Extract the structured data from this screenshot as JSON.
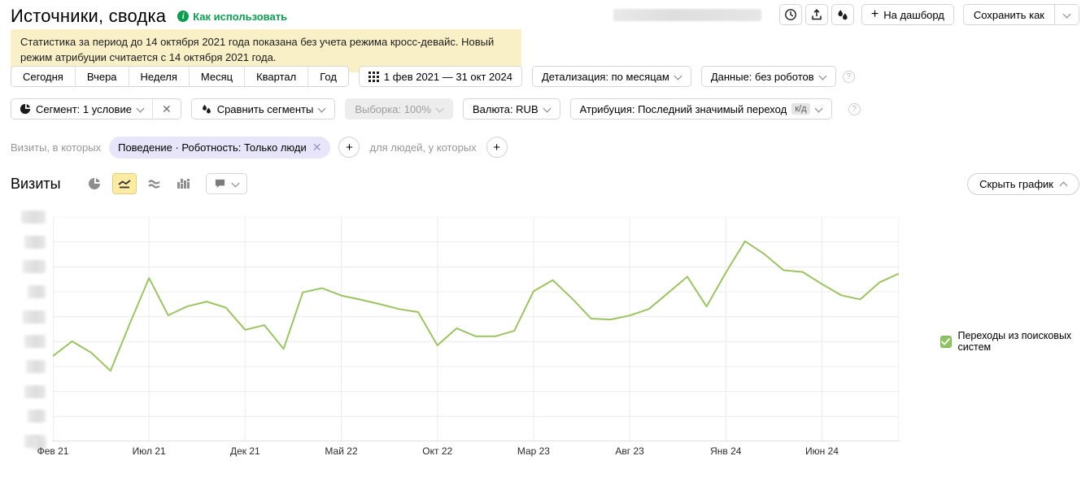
{
  "header": {
    "title": "Источники, сводка",
    "help_link": "Как использовать",
    "dashboard_label": "На дашборд",
    "save_as_label": "Сохранить как",
    "icons": [
      "history-clock-icon",
      "export-icon",
      "compare-segments-icon"
    ]
  },
  "notice": {
    "text": "Статистика за период до 14 октября 2021 года показана без учета режима кросс-девайс. Новый режим атрибуции считается с 14 октября 2021 года.",
    "background": "#faf0c8"
  },
  "toolbar": {
    "period_tabs": [
      "Сегодня",
      "Вчера",
      "Неделя",
      "Месяц",
      "Квартал",
      "Год"
    ],
    "date_range": "1 фев 2021 — 31 окт 2024",
    "detail_label": "Детализация: по месяцам",
    "data_label": "Данные: без роботов"
  },
  "segments": {
    "segment_label": "Сегмент: 1 условие",
    "compare_label": "Сравнить сегменты",
    "sampling_label": "Выборка: 100%",
    "currency_label": "Валюта: RUB",
    "attribution_label": "Атрибуция: Последний значимый переход",
    "attribution_badge": "к/д"
  },
  "filters": {
    "prefix": "Визиты, в которых",
    "chip_label": "Поведение · Роботность: Только люди",
    "suffix": "для людей, у которых"
  },
  "chart_header": {
    "title": "Визиты",
    "hide_label": "Скрыть график",
    "selected_chart_type": "line"
  },
  "legend": {
    "label": "Переходы из поисковых систем",
    "checkbox_color": "#8fc464",
    "checked": true
  },
  "chart_data": {
    "type": "line",
    "title": "Визиты",
    "x": [
      "Фев 21",
      "Мар 21",
      "Апр 21",
      "Май 21",
      "Июн 21",
      "Июл 21",
      "Авг 21",
      "Сен 21",
      "Окт 21",
      "Ноя 21",
      "Дек 21",
      "Янв 22",
      "Фев 22",
      "Мар 22",
      "Апр 22",
      "Май 22",
      "Июн 22",
      "Июл 22",
      "Авг 22",
      "Сен 22",
      "Окт 22",
      "Ноя 22",
      "Дек 22",
      "Янв 23",
      "Фев 23",
      "Мар 23",
      "Апр 23",
      "Май 23",
      "Июн 23",
      "Июл 23",
      "Авг 23",
      "Сен 23",
      "Окт 23",
      "Ноя 23",
      "Дек 23",
      "Янв 24",
      "Фев 24",
      "Мар 24",
      "Апр 24",
      "Май 24",
      "Июн 24",
      "Июл 24",
      "Авг 24",
      "Сен 24",
      "Окт 24"
    ],
    "x_tick_every": 5,
    "x_tick_labels": [
      "Фев 21",
      "Июл 21",
      "Дек 21",
      "Май 22",
      "Окт 22",
      "Мар 23",
      "Авг 23",
      "Янв 24",
      "Июн 24"
    ],
    "series": [
      {
        "name": "Переходы из поисковых систем",
        "color": "#9cc462",
        "values": [
          38,
          44.6,
          39.5,
          31.4,
          52.4,
          72.8,
          56.2,
          60.2,
          62.3,
          59.6,
          49.7,
          51.8,
          41.2,
          66.4,
          68.3,
          65,
          63.2,
          61.2,
          59,
          57.6,
          42.8,
          50.4,
          46.8,
          46.8,
          49.3,
          66.9,
          71.9,
          63.7,
          54.7,
          54.3,
          56.1,
          59,
          66.2,
          73.4,
          60.1,
          75.2,
          89.2,
          83.5,
          76.3,
          75.5,
          70.1,
          65.1,
          63.3,
          70.9,
          74.8
        ]
      }
    ],
    "ylim": [
      0,
      100
    ],
    "y_gridline_count": 10,
    "y_tick_labels_redacted": true,
    "values_unit": "percent of plot height (y-axis labels are blurred in screenshot)",
    "grid": true,
    "legend_position": "right"
  }
}
